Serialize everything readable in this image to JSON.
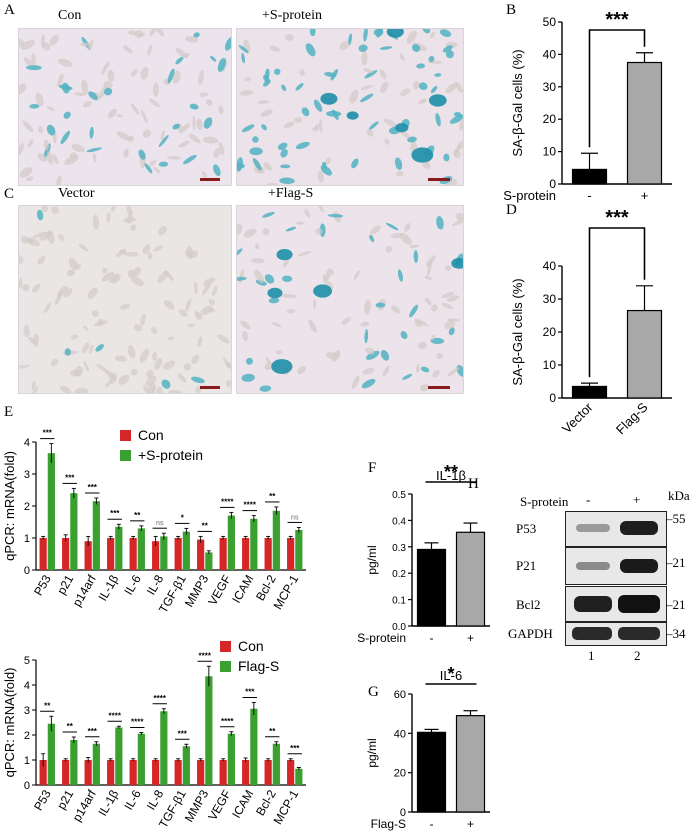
{
  "panels": {
    "A": {
      "letter": "A",
      "left_label": "Con",
      "right_label": "+S-protein"
    },
    "B": {
      "letter": "B"
    },
    "C": {
      "letter": "C",
      "left_label": "Vector",
      "right_label": "+Flag-S"
    },
    "D": {
      "letter": "D"
    },
    "E": {
      "letter": "E"
    },
    "F": {
      "letter": "F"
    },
    "G": {
      "letter": "G"
    },
    "H": {
      "letter": "H"
    }
  },
  "colors": {
    "black": "#000000",
    "grey": "#a8a8a8",
    "red": "#d62728",
    "green": "#3aa02f",
    "stain_blue": "#2a9bb0",
    "background_pink": "#efe6ee"
  },
  "chart_data": [
    {
      "id": "B",
      "type": "bar",
      "categories": [
        "-",
        "+"
      ],
      "values": [
        4.5,
        37.5
      ],
      "errors": [
        5,
        3
      ],
      "colors": [
        "#000000",
        "#a8a8a8"
      ],
      "ylabel": "SA-β-Gal cells (%)",
      "xlabel": "S-protein",
      "ylim": [
        0,
        50
      ],
      "yticks": [
        0,
        10,
        20,
        30,
        40,
        50
      ],
      "significance": "***"
    },
    {
      "id": "D",
      "type": "bar",
      "categories": [
        "Vector",
        "Flag-S"
      ],
      "values": [
        3.5,
        26.5
      ],
      "errors": [
        1,
        7.5
      ],
      "colors": [
        "#000000",
        "#a8a8a8"
      ],
      "ylabel": "SA-β-Gal cells (%)",
      "ylim": [
        0,
        40
      ],
      "yticks": [
        0,
        10,
        20,
        30,
        40
      ],
      "significance": "***"
    },
    {
      "id": "E-top",
      "type": "bar",
      "categories": [
        "P53",
        "p21",
        "p14arf",
        "IL-1β",
        "IL-6",
        "IL-8",
        "TGF-β1",
        "MMP3",
        "VEGF",
        "ICAM",
        "Bcl-2",
        "MCP-1"
      ],
      "series": [
        {
          "name": "Con",
          "color": "#d62728",
          "values": [
            1,
            1,
            0.9,
            1,
            1,
            0.9,
            1,
            0.95,
            1,
            1,
            1,
            1
          ],
          "errors": [
            0.05,
            0.1,
            0.15,
            0.05,
            0.05,
            0.15,
            0.05,
            0.1,
            0.05,
            0.05,
            0.05,
            0.05
          ]
        },
        {
          "name": "+S-protein",
          "color": "#3aa02f",
          "values": [
            3.65,
            2.4,
            2.15,
            1.35,
            1.3,
            1.05,
            1.2,
            0.55,
            1.7,
            1.6,
            1.85,
            1.25
          ],
          "errors": [
            0.3,
            0.15,
            0.1,
            0.08,
            0.08,
            0.1,
            0.1,
            0.05,
            0.1,
            0.1,
            0.12,
            0.08
          ]
        }
      ],
      "sig": [
        "***",
        "***",
        "***",
        "***",
        "**",
        "ns",
        "*",
        "**",
        "****",
        "****",
        "**",
        "ns"
      ],
      "ylabel": "qPCR: mRNA(fold)",
      "ylim": [
        0,
        4
      ],
      "yticks": [
        0,
        1,
        2,
        3,
        4
      ],
      "legend": "top"
    },
    {
      "id": "E-bottom",
      "type": "bar",
      "categories": [
        "P53",
        "p21",
        "p14arf",
        "IL-1β",
        "IL-6",
        "IL-8",
        "TGF-β1",
        "MMP3",
        "VEGF",
        "ICAM",
        "Bcl-2",
        "MCP-1"
      ],
      "series": [
        {
          "name": "Con",
          "color": "#d62728",
          "values": [
            1,
            1,
            1,
            1,
            1,
            1,
            1,
            1,
            1,
            1,
            1,
            1
          ],
          "errors": [
            0.25,
            0.05,
            0.1,
            0.05,
            0.05,
            0.05,
            0.05,
            0.05,
            0.05,
            0.08,
            0.05,
            0.05
          ]
        },
        {
          "name": "Flag-S",
          "color": "#3aa02f",
          "values": [
            2.45,
            1.8,
            1.65,
            2.3,
            2.05,
            2.95,
            1.55,
            4.35,
            2.05,
            3.05,
            1.65,
            0.65
          ],
          "errors": [
            0.3,
            0.12,
            0.08,
            0.05,
            0.05,
            0.1,
            0.08,
            0.4,
            0.08,
            0.25,
            0.08,
            0.05
          ]
        }
      ],
      "sig": [
        "**",
        "**",
        "***",
        "****",
        "****",
        "****",
        "***",
        "****",
        "****",
        "***",
        "**",
        "***"
      ],
      "ylabel": "qPCR: mRNA(fold)",
      "ylim": [
        0,
        5
      ],
      "yticks": [
        0,
        1,
        2,
        3,
        4,
        5
      ],
      "legend": "top-right"
    },
    {
      "id": "F",
      "type": "bar",
      "title": "IL-1β",
      "categories": [
        "-",
        "+"
      ],
      "values": [
        0.29,
        0.355
      ],
      "errors": [
        0.025,
        0.035
      ],
      "colors": [
        "#000000",
        "#a8a8a8"
      ],
      "ylabel": "pg/ml",
      "xlabel": "S-protein",
      "ylim": [
        0,
        0.5
      ],
      "yticks": [
        0.0,
        0.1,
        0.2,
        0.3,
        0.4,
        0.5
      ],
      "ytick_labels": [
        "0.0",
        "0.1",
        "0.2",
        "0.3",
        "0.4",
        "0.5"
      ],
      "significance": "**"
    },
    {
      "id": "G",
      "type": "bar",
      "title": "IL-6",
      "categories": [
        "-",
        "+"
      ],
      "values": [
        40.5,
        49
      ],
      "errors": [
        1.5,
        2.5
      ],
      "colors": [
        "#000000",
        "#a8a8a8"
      ],
      "ylabel": "pg/ml",
      "xlabel": "Flag-S",
      "ylim": [
        0,
        60
      ],
      "yticks": [
        0,
        20,
        40,
        60
      ],
      "significance": "*"
    }
  ],
  "blot": {
    "header": "S-protein",
    "lane_signs": [
      "-",
      "+"
    ],
    "kda_label": "kDa",
    "markers": [
      "55",
      "21",
      "21",
      "34"
    ],
    "rows": [
      "P53",
      "P21",
      "Bcl2",
      "GAPDH"
    ],
    "lanes": [
      "1",
      "2"
    ]
  }
}
